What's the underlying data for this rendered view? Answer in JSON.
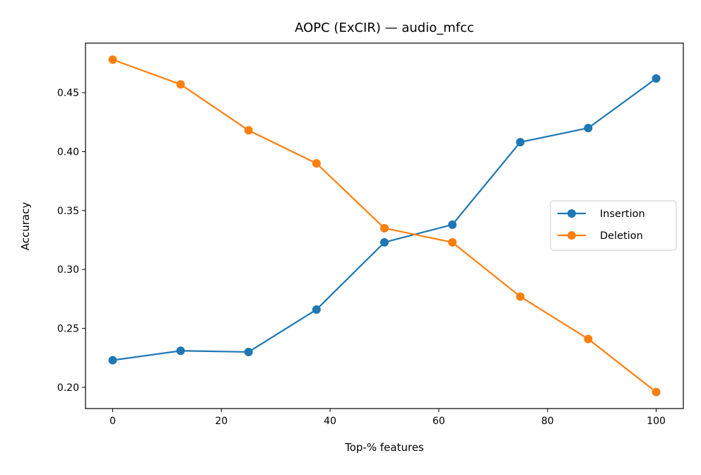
{
  "chart_data": {
    "type": "line",
    "title": "AOPC (ExCIR) — audio_mfcc",
    "xlabel": "Top-% features",
    "ylabel": "Accuracy",
    "xlim": [
      -5,
      105
    ],
    "ylim": [
      0.182,
      0.492
    ],
    "xticks": [
      0,
      20,
      40,
      60,
      80,
      100
    ],
    "xtick_labels": [
      "0",
      "20",
      "40",
      "60",
      "80",
      "100"
    ],
    "yticks": [
      0.2,
      0.25,
      0.3,
      0.35,
      0.4,
      0.45
    ],
    "ytick_labels": [
      "0.20",
      "0.25",
      "0.30",
      "0.35",
      "0.40",
      "0.45"
    ],
    "grid": false,
    "legend_position": "center-right",
    "x": [
      0,
      12.5,
      25,
      37.5,
      50,
      62.5,
      75,
      87.5,
      100
    ],
    "series": [
      {
        "name": "Insertion",
        "color": "#1f77b4",
        "marker": "circle",
        "values": [
          0.223,
          0.231,
          0.23,
          0.266,
          0.323,
          0.338,
          0.408,
          0.42,
          0.462
        ]
      },
      {
        "name": "Deletion",
        "color": "#ff7f0e",
        "marker": "circle",
        "values": [
          0.478,
          0.457,
          0.418,
          0.39,
          0.335,
          0.323,
          0.277,
          0.241,
          0.196
        ]
      }
    ]
  }
}
